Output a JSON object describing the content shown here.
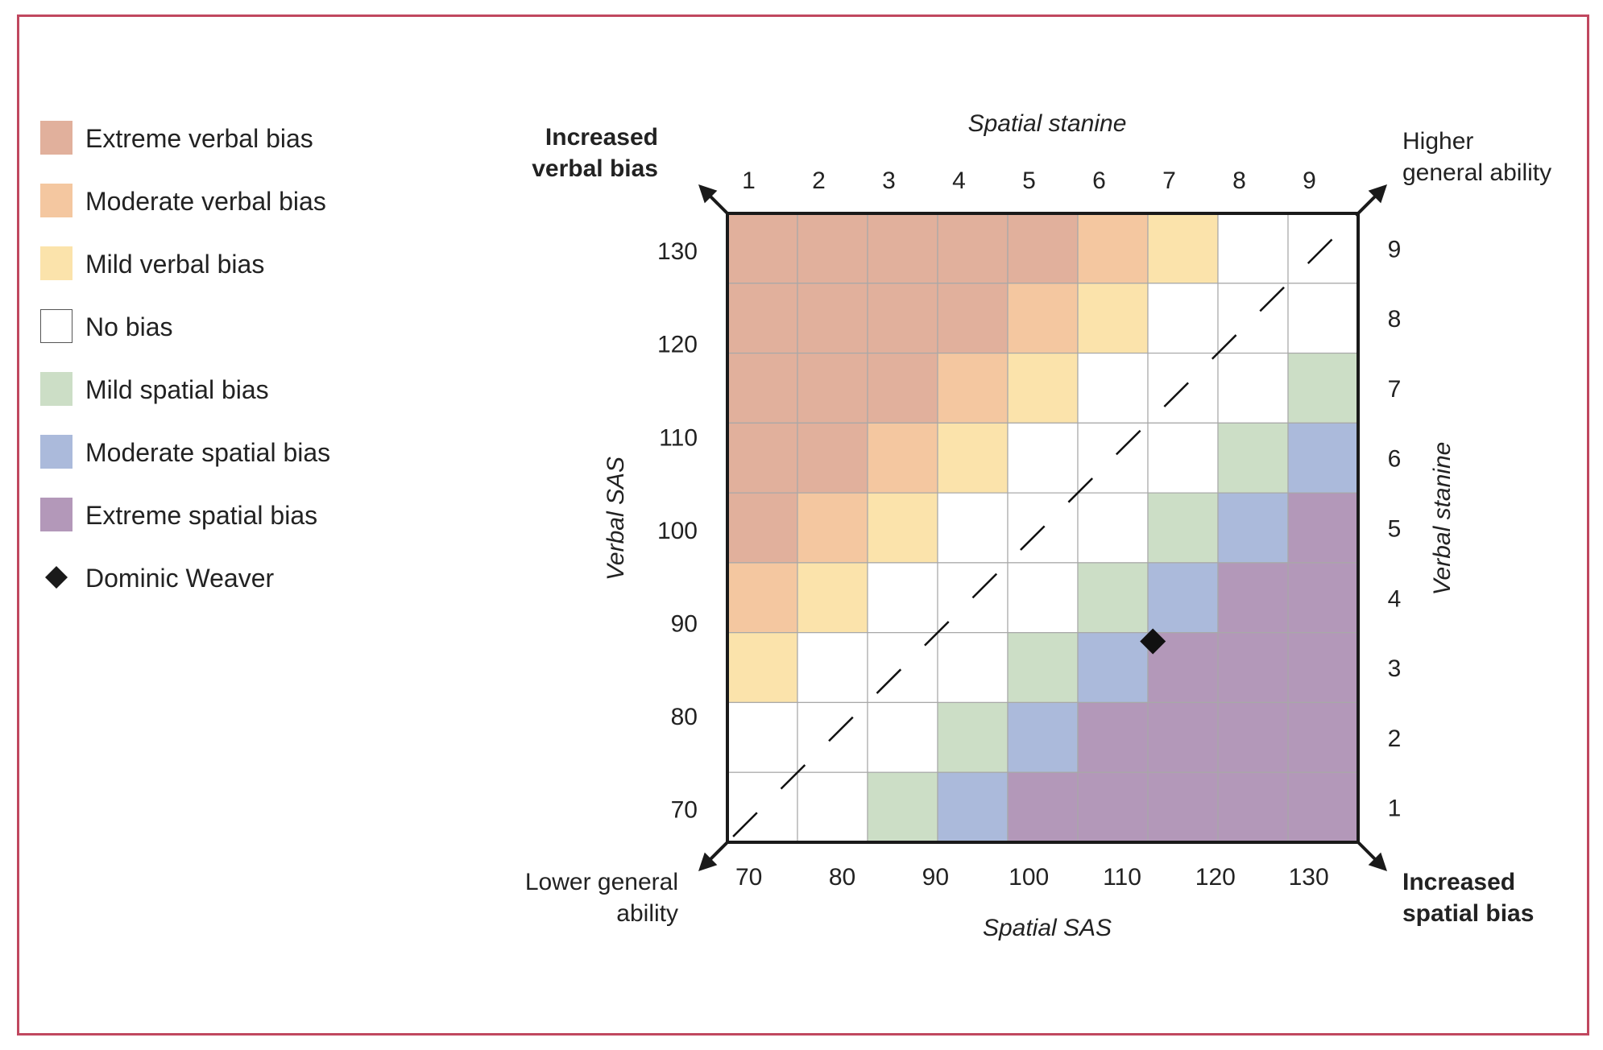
{
  "legend": {
    "items": [
      {
        "label": "Extreme verbal bias",
        "color": "#e1b09c"
      },
      {
        "label": "Moderate verbal bias",
        "color": "#f4c7a0"
      },
      {
        "label": "Mild verbal bias",
        "color": "#fbe3ab"
      },
      {
        "label": "No bias",
        "color": "#ffffff"
      },
      {
        "label": "Mild spatial bias",
        "color": "#ccdec6"
      },
      {
        "label": "Moderate spatial bias",
        "color": "#abbadb"
      },
      {
        "label": "Extreme spatial bias",
        "color": "#b398b9"
      }
    ],
    "marker_label": "Dominic Weaver"
  },
  "chart_data": {
    "type": "heatmap",
    "x_top_label": "Spatial stanine",
    "x_bottom_label": "Spatial SAS",
    "y_left_label": "Verbal SAS",
    "y_right_label": "Verbal stanine",
    "x_top_ticks": [
      "1",
      "2",
      "3",
      "4",
      "5",
      "6",
      "7",
      "8",
      "9"
    ],
    "x_bottom_ticks": [
      "70",
      "80",
      "90",
      "100",
      "110",
      "120",
      "130"
    ],
    "y_left_ticks": [
      "130",
      "120",
      "110",
      "100",
      "90",
      "80",
      "70"
    ],
    "y_right_ticks": [
      "9",
      "8",
      "7",
      "6",
      "5",
      "4",
      "3",
      "2",
      "1"
    ],
    "corner_labels": {
      "top_left": [
        "Increased",
        "verbal bias"
      ],
      "top_right": [
        "Higher",
        "general ability"
      ],
      "bottom_left": [
        "Lower general",
        "ability"
      ],
      "bottom_right": [
        "Increased",
        "spatial bias"
      ]
    },
    "category_colors": [
      "#e1b09c",
      "#f4c7a0",
      "#fbe3ab",
      "#ffffff",
      "#ccdec6",
      "#abbadb",
      "#b398b9"
    ],
    "grid_note": "rows listed from verbal stanine 9 (top) down to 1; columns spatial stanine 1..9; value = legend index",
    "grid": [
      [
        0,
        0,
        0,
        0,
        0,
        1,
        2,
        3,
        3
      ],
      [
        0,
        0,
        0,
        0,
        1,
        2,
        3,
        3,
        3
      ],
      [
        0,
        0,
        0,
        1,
        2,
        3,
        3,
        3,
        4
      ],
      [
        0,
        0,
        1,
        2,
        3,
        3,
        3,
        4,
        5
      ],
      [
        0,
        1,
        2,
        3,
        3,
        3,
        4,
        5,
        6
      ],
      [
        1,
        2,
        3,
        3,
        3,
        4,
        5,
        6,
        6
      ],
      [
        2,
        3,
        3,
        3,
        4,
        5,
        6,
        6,
        6
      ],
      [
        3,
        3,
        3,
        4,
        5,
        6,
        6,
        6,
        6
      ],
      [
        3,
        3,
        4,
        5,
        6,
        6,
        6,
        6,
        6
      ]
    ],
    "diagonal": "dashed line from lower general ability to higher general ability",
    "marker": {
      "name": "Dominic Weaver",
      "spatial_sas": 112,
      "verbal_sas": 88
    }
  }
}
